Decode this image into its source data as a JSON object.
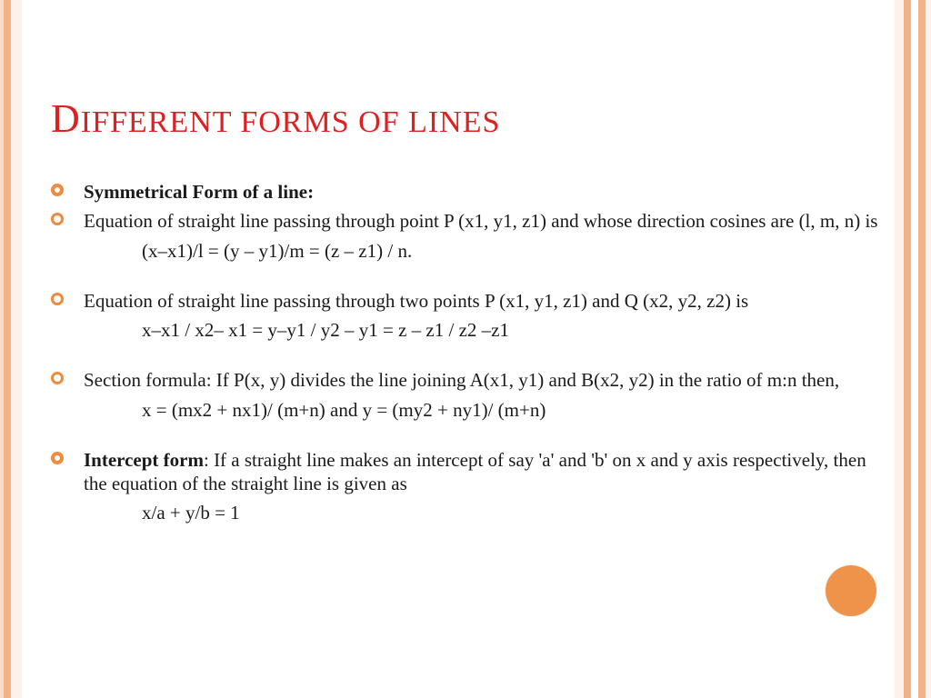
{
  "colors": {
    "title": "#e01f1f",
    "text": "#1a1a1a",
    "bullet_border": "#f08a3c",
    "circle": "#f0934a",
    "left_stripes": [
      "#f9dccb",
      "#f2b389",
      "#fdf2ea"
    ],
    "left_widths": [
      4,
      8,
      12
    ],
    "right_stripes": [
      "#fdf2ea",
      "#f2b389",
      "#ffffff",
      "#f2b389",
      "#fdf2ea"
    ],
    "right_widths": [
      10,
      8,
      8,
      8,
      6
    ]
  },
  "title_first": "D",
  "title_rest": "IFFERENT FORMS OF LINES",
  "items": [
    {
      "bold": true,
      "text": "Symmetrical Form of a line:",
      "formula": ""
    },
    {
      "bold": false,
      "text": " Equation of straight line passing through point P (x1, y1, z1) and whose direction cosines are (l, m, n) is",
      "formula": "(x–x1)/l = (y – y1)/m = (z – z1) / n."
    },
    {
      "bold": false,
      "spaced": true,
      "text": "Equation of straight line passing through two points P (x1, y1, z1) and Q (x2, y2, z2) is",
      "formula": "x–x1 / x2– x1 = y–y1 / y2 – y1 = z – z1 / z2 –z1"
    },
    {
      "bold": false,
      "spaced": true,
      "text": "Section formula: If P(x, y) divides the line joining A(x1, y1) and B(x2, y2) in the ratio of m:n then,",
      "formula": "x = (mx2 + nx1)/ (m+n) and y = (my2 + ny1)/ (m+n)"
    },
    {
      "bold": false,
      "spaced": true,
      "lead_bold": "Intercept form",
      "text": ": If a straight line makes an intercept of say 'a' and 'b' on x and y axis respectively, then the equation of the straight line is given as",
      "formula": "x/a + y/b = 1"
    }
  ]
}
